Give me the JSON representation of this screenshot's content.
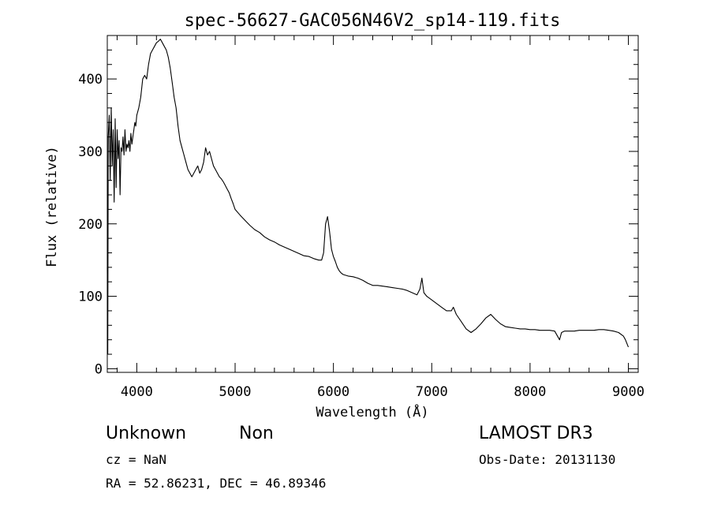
{
  "chart_data": {
    "type": "line",
    "title": "spec-56627-GAC056N46V2_sp14-119.fits",
    "xlabel": "Wavelength (Å)",
    "ylabel": "Flux (relative)",
    "xlim": [
      3700,
      9100
    ],
    "ylim": [
      -5,
      460
    ],
    "xticks": [
      {
        "value": 4000,
        "label": "4000"
      },
      {
        "value": 5000,
        "label": "5000"
      },
      {
        "value": 6000,
        "label": "6000"
      },
      {
        "value": 7000,
        "label": "7000"
      },
      {
        "value": 8000,
        "label": "8000"
      },
      {
        "value": 9000,
        "label": "9000"
      }
    ],
    "yticks": [
      {
        "value": 0,
        "label": "0"
      },
      {
        "value": 100,
        "label": "100"
      },
      {
        "value": 200,
        "label": "200"
      },
      {
        "value": 300,
        "label": "300"
      },
      {
        "value": 400,
        "label": "400"
      }
    ],
    "grid": false,
    "series": [
      {
        "x": [
          3700,
          3705,
          3710,
          3720,
          3730,
          3740,
          3750,
          3760,
          3770,
          3780,
          3790,
          3800,
          3810,
          3820,
          3830,
          3840,
          3850,
          3860,
          3870,
          3880,
          3890,
          3900,
          3910,
          3920,
          3930,
          3940,
          3950,
          3960,
          3970,
          3980,
          3990,
          4000,
          4020,
          4040,
          4060,
          4080,
          4100,
          4120,
          4140,
          4160,
          4180,
          4200,
          4220,
          4240,
          4260,
          4280,
          4300,
          4320,
          4340,
          4360,
          4380,
          4400,
          4420,
          4440,
          4460,
          4480,
          4500,
          4520,
          4540,
          4560,
          4580,
          4600,
          4620,
          4640,
          4660,
          4680,
          4700,
          4720,
          4740,
          4760,
          4780,
          4800,
          4820,
          4840,
          4860,
          4880,
          4900,
          4920,
          4940,
          4960,
          4980,
          5000,
          5050,
          5100,
          5150,
          5200,
          5250,
          5300,
          5350,
          5400,
          5450,
          5500,
          5550,
          5600,
          5650,
          5700,
          5750,
          5800,
          5850,
          5880,
          5900,
          5920,
          5940,
          5960,
          5980,
          6000,
          6020,
          6040,
          6060,
          6080,
          6100,
          6150,
          6200,
          6250,
          6300,
          6350,
          6400,
          6450,
          6500,
          6550,
          6600,
          6650,
          6700,
          6750,
          6800,
          6850,
          6880,
          6900,
          6920,
          6950,
          7000,
          7050,
          7100,
          7150,
          7200,
          7220,
          7250,
          7300,
          7350,
          7400,
          7450,
          7500,
          7550,
          7600,
          7650,
          7700,
          7750,
          7800,
          7850,
          7900,
          7950,
          8000,
          8050,
          8100,
          8150,
          8200,
          8250,
          8300,
          8320,
          8350,
          8400,
          8450,
          8500,
          8550,
          8600,
          8650,
          8700,
          8750,
          8800,
          8850,
          8900,
          8950,
          8970,
          9000
        ],
        "y": [
          140,
          20,
          320,
          350,
          260,
          360,
          280,
          330,
          230,
          345,
          250,
          330,
          290,
          315,
          240,
          305,
          300,
          320,
          295,
          330,
          300,
          310,
          305,
          315,
          300,
          325,
          310,
          320,
          330,
          340,
          335,
          350,
          360,
          375,
          400,
          405,
          400,
          420,
          435,
          440,
          445,
          450,
          452,
          455,
          450,
          445,
          440,
          430,
          415,
          395,
          375,
          360,
          335,
          315,
          305,
          295,
          285,
          275,
          270,
          265,
          270,
          275,
          280,
          270,
          275,
          285,
          305,
          295,
          300,
          290,
          280,
          275,
          270,
          265,
          262,
          258,
          253,
          248,
          243,
          235,
          228,
          220,
          212,
          205,
          198,
          192,
          188,
          182,
          178,
          175,
          171,
          168,
          165,
          162,
          159,
          156,
          155,
          152,
          150,
          150,
          160,
          200,
          210,
          190,
          165,
          155,
          148,
          140,
          135,
          132,
          130,
          128,
          127,
          125,
          122,
          118,
          115,
          115,
          114,
          113,
          112,
          111,
          110,
          108,
          105,
          102,
          110,
          125,
          105,
          100,
          95,
          90,
          85,
          80,
          80,
          85,
          75,
          65,
          55,
          50,
          55,
          62,
          70,
          75,
          68,
          62,
          58,
          57,
          56,
          55,
          55,
          54,
          54,
          53,
          53,
          53,
          52,
          40,
          50,
          52,
          52,
          52,
          53,
          53,
          53,
          53,
          54,
          54,
          53,
          52,
          50,
          45,
          40,
          30
        ]
      }
    ]
  },
  "labels": {
    "object_class": "Unknown",
    "subclass": "Non",
    "redshift": "cz = NaN",
    "coordinates": "RA =  52.86231, DEC =  46.89346",
    "survey": "LAMOST DR3",
    "obs_date": "Obs-Date: 20131130"
  }
}
